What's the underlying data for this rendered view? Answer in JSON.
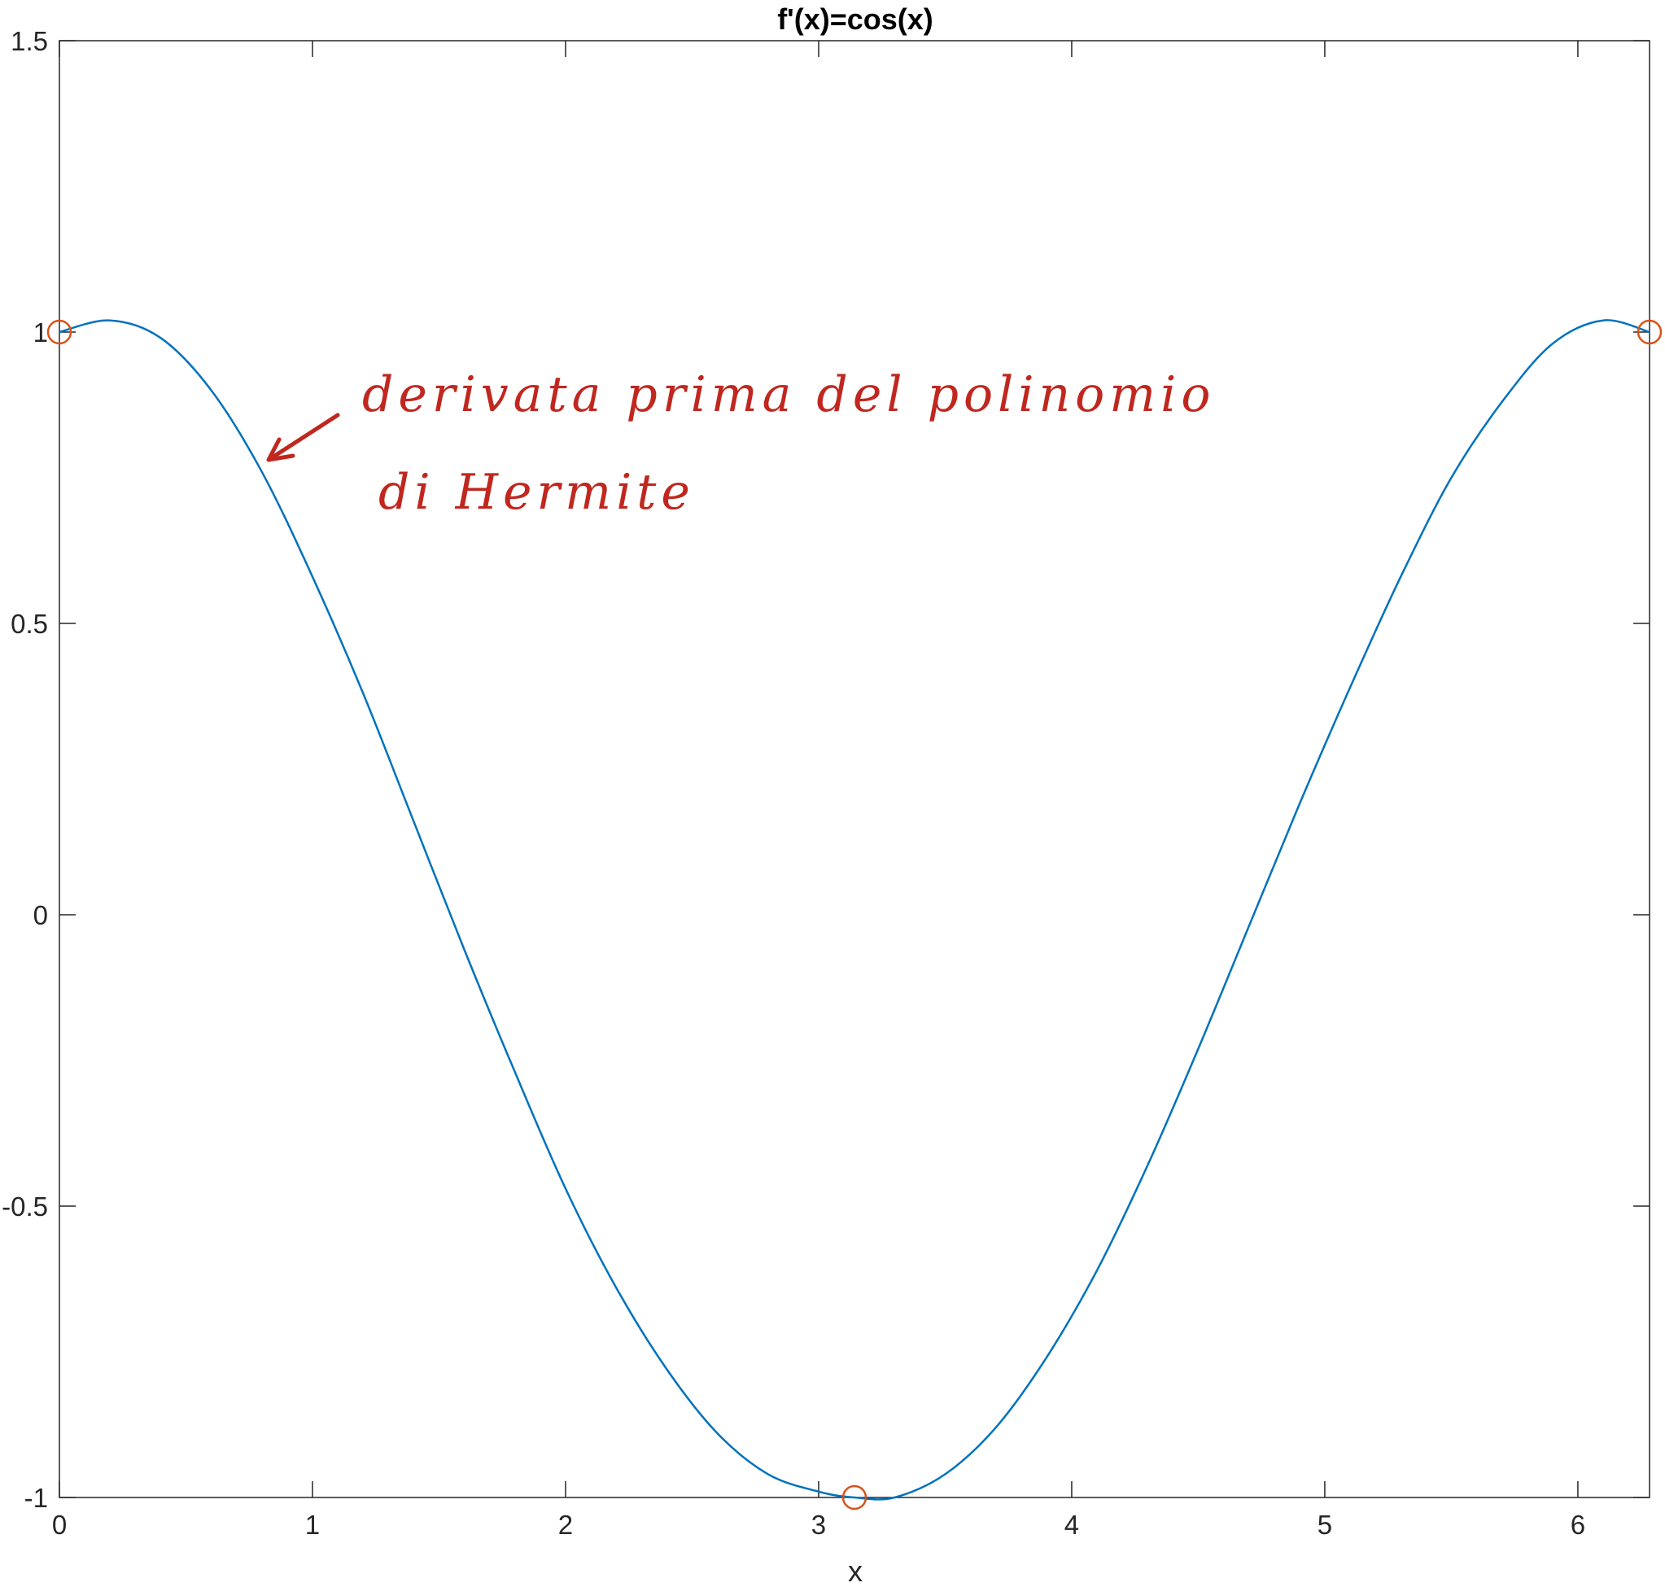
{
  "chart_data": {
    "type": "line",
    "title": "f'(x)=cos(x)",
    "xlabel": "x",
    "ylabel": "",
    "xlim": [
      0,
      6.2832
    ],
    "ylim": [
      -1,
      1.5
    ],
    "xticks": [
      0,
      1,
      2,
      3,
      4,
      5,
      6
    ],
    "xtick_labels": [
      "0",
      "1",
      "2",
      "3",
      "4",
      "5",
      "6"
    ],
    "yticks": [
      -1,
      -0.5,
      0,
      0.5,
      1,
      1.5
    ],
    "ytick_labels": [
      "-1",
      "-0.5",
      "0",
      "0.5",
      "1",
      "1.5"
    ],
    "grid": false,
    "series": [
      {
        "kind": "line",
        "color": "#0072BD",
        "points": [
          [
            0,
            1.0
          ],
          [
            0.2,
            1.02
          ],
          [
            0.4,
            0.99
          ],
          [
            0.6,
            0.9
          ],
          [
            0.8,
            0.76
          ],
          [
            1.0,
            0.58
          ],
          [
            1.2,
            0.38
          ],
          [
            1.4,
            0.16
          ],
          [
            1.6,
            -0.06
          ],
          [
            1.8,
            -0.27
          ],
          [
            2.0,
            -0.47
          ],
          [
            2.2,
            -0.64
          ],
          [
            2.4,
            -0.78
          ],
          [
            2.6,
            -0.89
          ],
          [
            2.8,
            -0.96
          ],
          [
            3.0,
            -0.99
          ],
          [
            3.1416,
            -1.0
          ],
          [
            3.3,
            -1.0
          ],
          [
            3.5,
            -0.96
          ],
          [
            3.7,
            -0.88
          ],
          [
            3.9,
            -0.76
          ],
          [
            4.1,
            -0.61
          ],
          [
            4.3,
            -0.43
          ],
          [
            4.5,
            -0.23
          ],
          [
            4.7,
            -0.02
          ],
          [
            4.9,
            0.19
          ],
          [
            5.1,
            0.39
          ],
          [
            5.3,
            0.58
          ],
          [
            5.5,
            0.75
          ],
          [
            5.7,
            0.88
          ],
          [
            5.9,
            0.98
          ],
          [
            6.1,
            1.02
          ],
          [
            6.2832,
            1.0
          ]
        ]
      },
      {
        "kind": "markers",
        "marker": "circle",
        "color": "#D95319",
        "points": [
          [
            0,
            1
          ],
          [
            3.1416,
            -1
          ],
          [
            6.2832,
            1
          ]
        ]
      }
    ],
    "annotations": [
      {
        "kind": "handwritten",
        "lines": [
          "derivata prima del polinomio",
          "di Hermite"
        ],
        "color": "#c0271f",
        "arrow_to": [
          0.8,
          0.78
        ]
      }
    ]
  }
}
